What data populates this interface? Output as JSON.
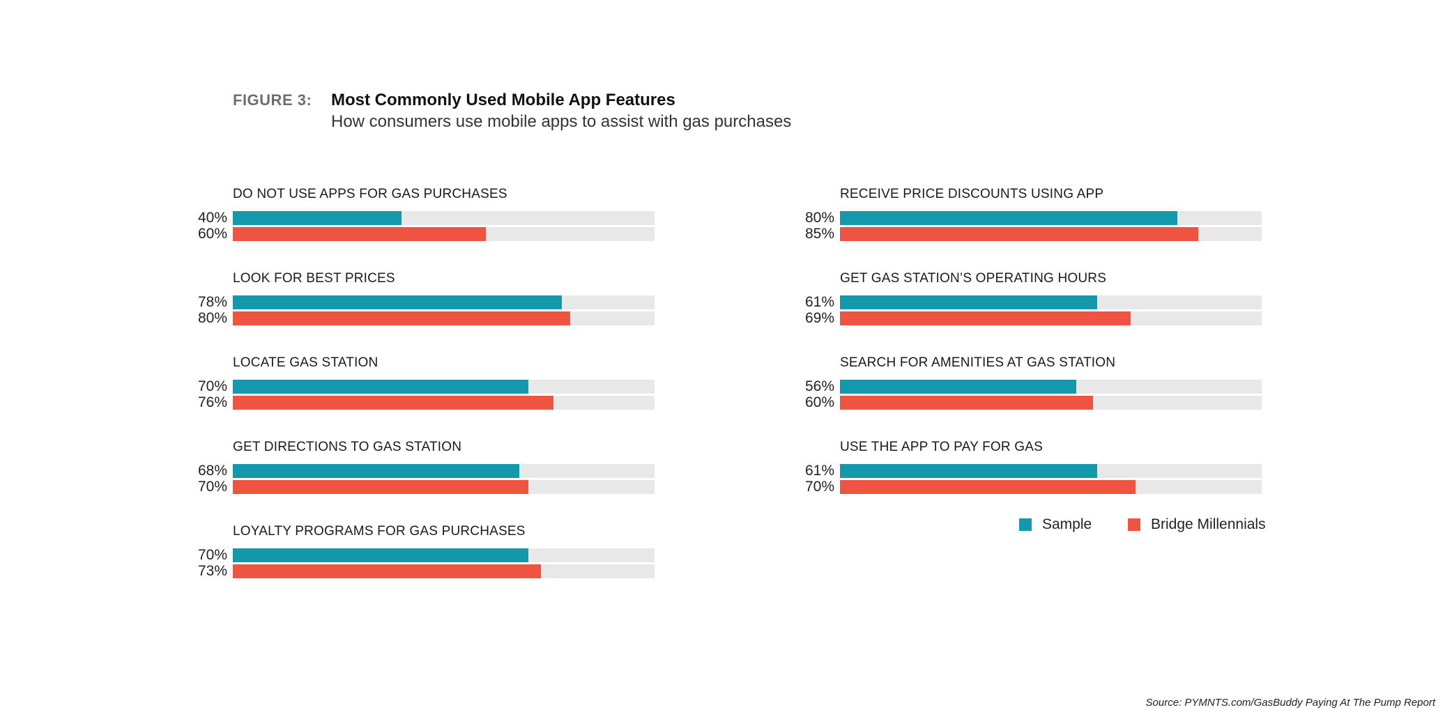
{
  "header": {
    "figure_label": "FIGURE 3:",
    "title": "Most Commonly Used Mobile App Features",
    "subtitle": "How consumers use mobile apps to assist with gas purchases"
  },
  "source": "Source: PYMNTS.com/GasBuddy Paying At The Pump Report",
  "colors": {
    "sample": "#1399ab",
    "bridge": "#ef5442",
    "track": "#e8e8e8"
  },
  "chart_data": {
    "type": "bar",
    "orientation": "horizontal",
    "title": "Most Commonly Used Mobile App Features",
    "subtitle": "How consumers use mobile apps to assist with gas purchases",
    "xlim": [
      0,
      100
    ],
    "unit": "%",
    "legend": {
      "position": "bottom-right",
      "entries": [
        "Sample",
        "Bridge Millennials"
      ]
    },
    "categories": [
      "DO NOT USE APPS FOR GAS PURCHASES",
      "LOOK FOR BEST PRICES",
      "LOCATE GAS STATION",
      "GET DIRECTIONS TO GAS STATION",
      "LOYALTY PROGRAMS FOR GAS PURCHASES",
      "RECEIVE PRICE DISCOUNTS USING APP",
      "GET GAS STATION’S OPERATING HOURS",
      "SEARCH FOR AMENITIES AT GAS STATION",
      "USE THE APP TO PAY FOR GAS"
    ],
    "series": [
      {
        "name": "Sample",
        "values": [
          40,
          78,
          70,
          68,
          70,
          80,
          61,
          56,
          61
        ],
        "labels": [
          "40%",
          "78%",
          "70%",
          "68%",
          "70%",
          "80%",
          "61%",
          "56%",
          "61%"
        ]
      },
      {
        "name": "Bridge Millennials",
        "values": [
          60,
          80,
          76,
          70,
          73,
          85,
          69,
          60,
          70
        ],
        "labels": [
          "60%",
          "80%",
          "76%",
          "70%",
          "73%",
          "85%",
          "69%",
          "60%",
          "70%"
        ]
      }
    ]
  }
}
